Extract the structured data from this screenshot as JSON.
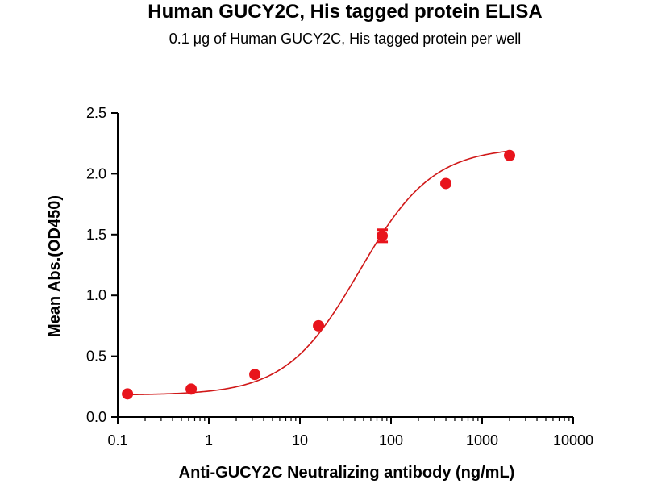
{
  "chart_data": {
    "type": "scatter",
    "title": "Human GUCY2C, His tagged protein ELISA",
    "subtitle": "0.1 μg of Human GUCY2C, His tagged protein per well",
    "xlabel": "Anti-GUCY2C Neutralizing antibody (ng/mL)",
    "ylabel": "Mean Abs.(OD450)",
    "xscale": "log",
    "xlim": [
      0.1,
      10000
    ],
    "ylim": [
      0,
      2.5
    ],
    "xticks": [
      {
        "value": 0.1,
        "label": "0.1"
      },
      {
        "value": 1,
        "label": "1"
      },
      {
        "value": 10,
        "label": "10"
      },
      {
        "value": 100,
        "label": "100"
      },
      {
        "value": 1000,
        "label": "1000"
      },
      {
        "value": 10000,
        "label": "10000"
      }
    ],
    "yticks": [
      {
        "value": 0,
        "label": "0.0"
      },
      {
        "value": 0.5,
        "label": "0.5"
      },
      {
        "value": 1.0,
        "label": "1.0"
      },
      {
        "value": 1.5,
        "label": "1.5"
      },
      {
        "value": 2.0,
        "label": "2.0"
      },
      {
        "value": 2.5,
        "label": "2.5"
      }
    ],
    "grid": false,
    "color": "#e8141c",
    "curve_color": "#d01818",
    "points": [
      {
        "x": 0.128,
        "y": 0.19,
        "err": 0.0
      },
      {
        "x": 0.64,
        "y": 0.23,
        "err": 0.0
      },
      {
        "x": 3.2,
        "y": 0.35,
        "err": 0.0
      },
      {
        "x": 16,
        "y": 0.75,
        "err": 0.0
      },
      {
        "x": 80,
        "y": 1.49,
        "err": 0.05
      },
      {
        "x": 400,
        "y": 1.92,
        "err": 0.0
      },
      {
        "x": 2000,
        "y": 2.15,
        "err": 0.0
      }
    ],
    "fit": {
      "model": "4PL",
      "bottom": 0.18,
      "top": 2.22,
      "ec50": 45,
      "hill": 1.08
    }
  }
}
